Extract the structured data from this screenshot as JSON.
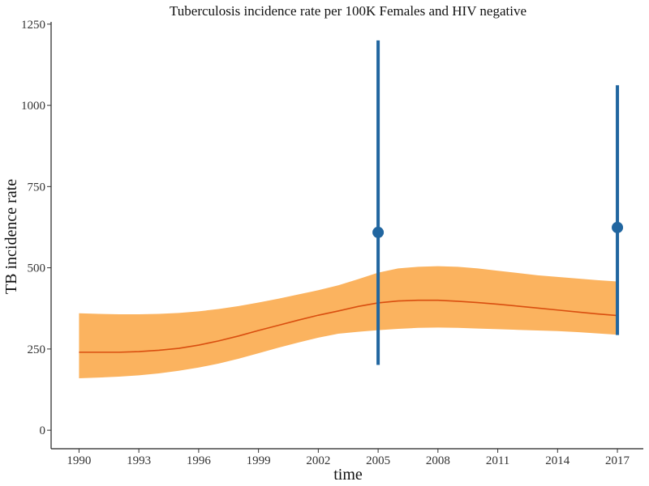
{
  "chart_data": {
    "type": "line",
    "title": "Tuberculosis incidence rate per 100K Females and HIV negative",
    "xlabel": "time",
    "ylabel": "TB incidence rate",
    "xlim": [
      1988.6,
      2018.3
    ],
    "ylim": [
      -57,
      1257
    ],
    "x_ticks": [
      1990,
      1993,
      1996,
      1999,
      2002,
      2005,
      2008,
      2011,
      2014,
      2017
    ],
    "y_ticks": [
      0,
      250,
      500,
      750,
      1000,
      1250
    ],
    "grid": false,
    "legend": "none",
    "colors": {
      "line": "#d94e0f",
      "band": "#fbb35f",
      "points": "#2166a0"
    },
    "series": [
      {
        "kind": "line",
        "x": [
          1990,
          1991,
          1992,
          1993,
          1994,
          1995,
          1996,
          1997,
          1998,
          1999,
          2000,
          2001,
          2002,
          2003,
          2004,
          2005,
          2006,
          2007,
          2008,
          2009,
          2010,
          2011,
          2012,
          2013,
          2014,
          2015,
          2016,
          2017
        ],
        "y": [
          240,
          240,
          240,
          242,
          246,
          252,
          262,
          275,
          290,
          307,
          323,
          339,
          354,
          367,
          381,
          392,
          398,
          400,
          400,
          397,
          393,
          388,
          382,
          376,
          370,
          364,
          358,
          353
        ]
      },
      {
        "kind": "band",
        "x": [
          1990,
          1991,
          1992,
          1993,
          1994,
          1995,
          1996,
          1997,
          1998,
          1999,
          2000,
          2001,
          2002,
          2003,
          2004,
          2005,
          2006,
          2007,
          2008,
          2009,
          2010,
          2011,
          2012,
          2013,
          2014,
          2015,
          2016,
          2017
        ],
        "upper": [
          360,
          358,
          357,
          357,
          358,
          361,
          366,
          373,
          382,
          393,
          405,
          418,
          431,
          446,
          465,
          485,
          498,
          503,
          505,
          503,
          498,
          491,
          484,
          477,
          472,
          467,
          462,
          458
        ],
        "lower": [
          160,
          162,
          165,
          169,
          175,
          183,
          193,
          205,
          220,
          237,
          254,
          270,
          285,
          297,
          303,
          308,
          312,
          315,
          316,
          315,
          313,
          311,
          309,
          307,
          305,
          302,
          298,
          294
        ]
      },
      {
        "kind": "points",
        "x": [
          2005,
          2017
        ],
        "y": [
          609,
          624
        ],
        "lower": [
          201,
          293
        ],
        "upper": [
          1200,
          1062
        ]
      }
    ]
  }
}
